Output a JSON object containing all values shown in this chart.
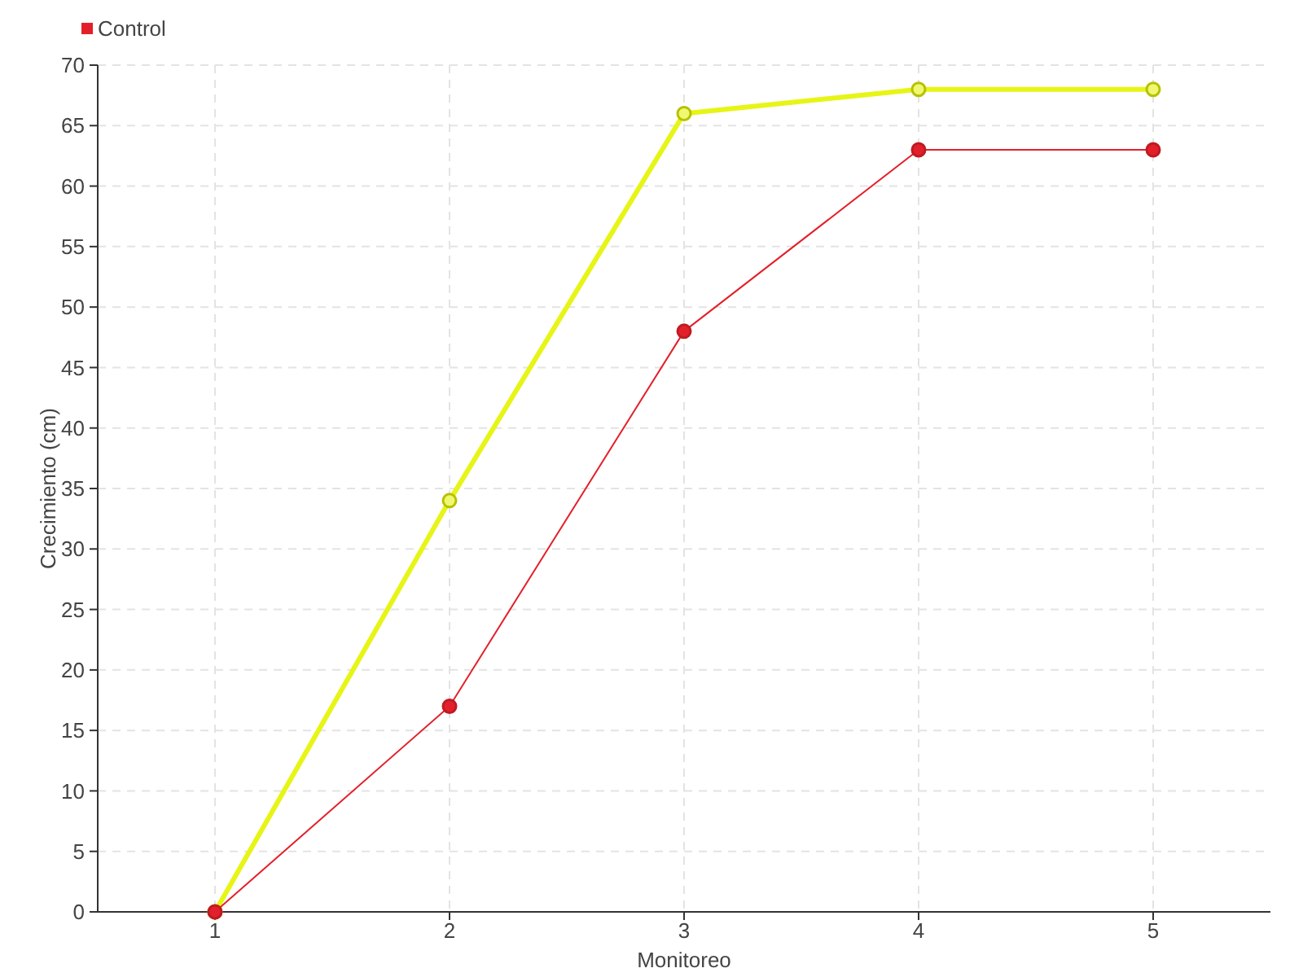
{
  "chart_data": {
    "type": "line",
    "xlabel": "Monitoreo",
    "ylabel": "Crecimiento (cm)",
    "categories": [
      "1",
      "2",
      "3",
      "4",
      "5"
    ],
    "series": [
      {
        "color": "#e6f516",
        "values": [
          0,
          34,
          66,
          68,
          68
        ]
      },
      {
        "name": "Control",
        "color": "#e3202a",
        "values": [
          0,
          17,
          48,
          63,
          63
        ]
      }
    ],
    "ylim": [
      0,
      70
    ],
    "yticks": [
      0,
      5,
      10,
      15,
      20,
      25,
      30,
      35,
      40,
      45,
      50,
      55,
      60,
      65,
      70
    ],
    "grid": true,
    "legend": "top left",
    "marker": "circle"
  }
}
